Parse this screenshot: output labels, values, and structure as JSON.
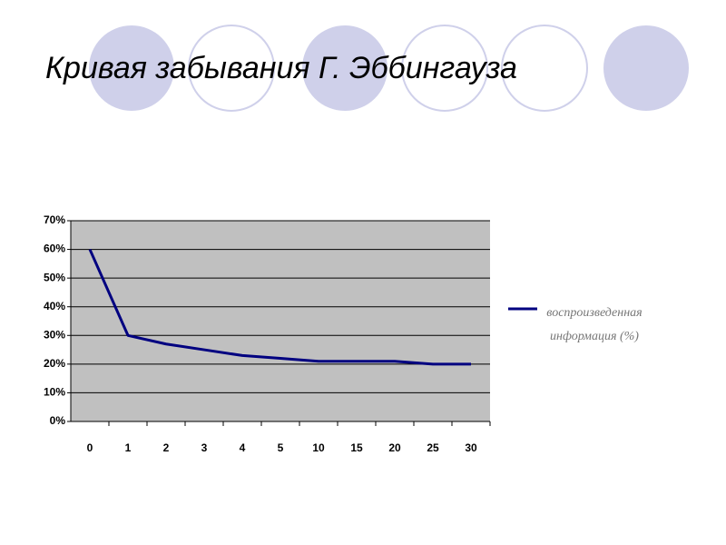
{
  "chart_data": {
    "type": "line",
    "title": "Кривая забывания Г. Эббингауза",
    "categories": [
      "0",
      "1",
      "2",
      "3",
      "4",
      "5",
      "10",
      "15",
      "20",
      "25",
      "30"
    ],
    "series": [
      {
        "name": "воспроизведенная информация (%)",
        "color": "#000080",
        "values": [
          60,
          30,
          27,
          25,
          23,
          22,
          21,
          21,
          21,
          20,
          20
        ]
      }
    ],
    "ylim": [
      0,
      70
    ],
    "yticks": [
      {
        "value": 0,
        "label": "0%"
      },
      {
        "value": 10,
        "label": "10%"
      },
      {
        "value": 20,
        "label": "20%"
      },
      {
        "value": 30,
        "label": "30%"
      },
      {
        "value": 40,
        "label": "40%"
      },
      {
        "value": 50,
        "label": "50%"
      },
      {
        "value": 60,
        "label": "60%"
      },
      {
        "value": 70,
        "label": "70%"
      }
    ],
    "grid": true
  }
}
